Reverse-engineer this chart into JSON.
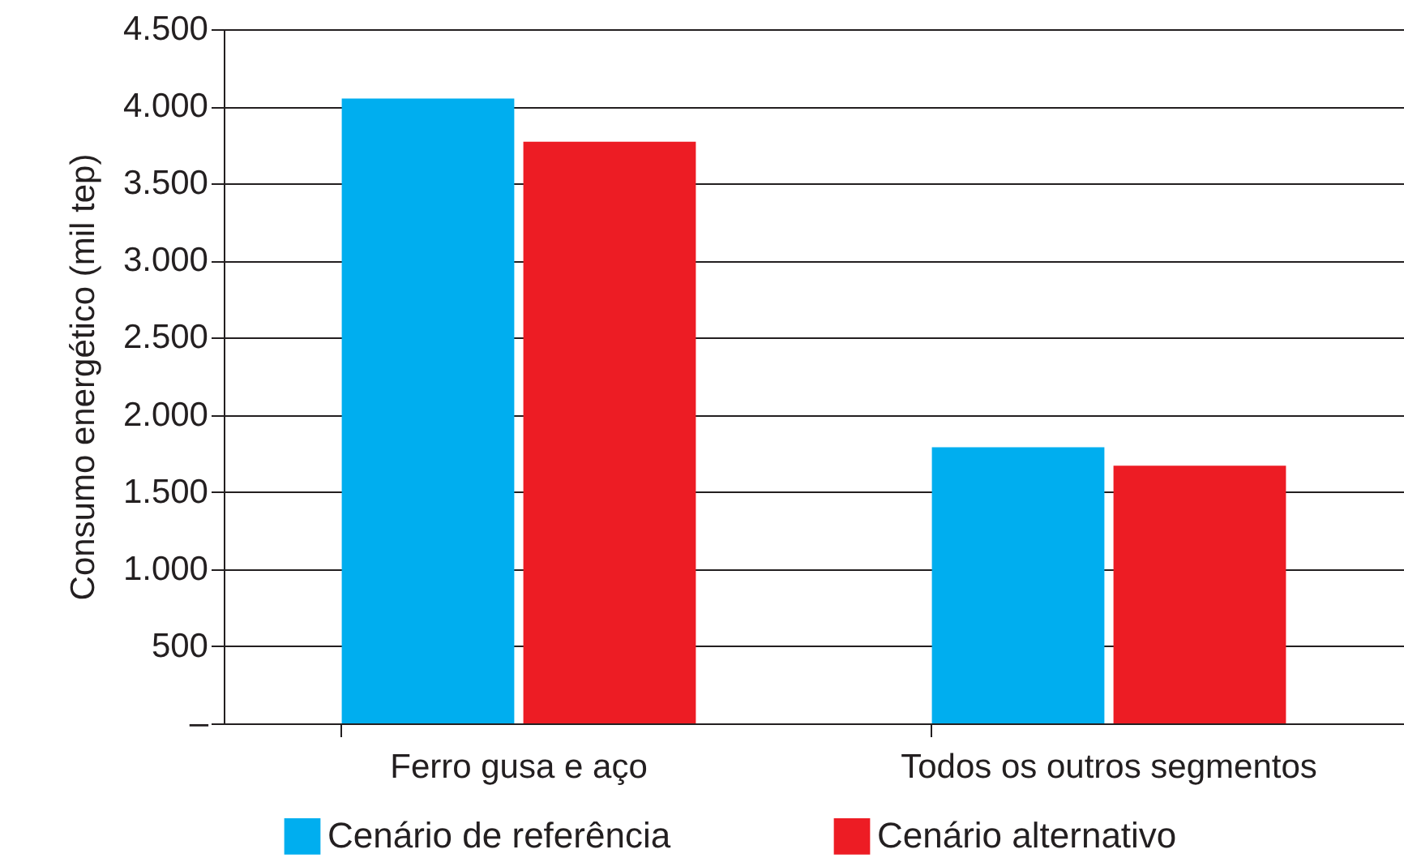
{
  "chart_data": {
    "type": "bar",
    "ylabel": "Consumo energético (mil tep)",
    "categories": [
      "Ferro gusa e aço",
      "Todos os outros segmentos"
    ],
    "series": [
      {
        "name": "Cenário de referência",
        "color": "#00aeef",
        "values": [
          4050,
          1790
        ]
      },
      {
        "name": "Cenário alternativo",
        "color": "#ed1c24",
        "values": [
          3770,
          1670
        ]
      }
    ],
    "ylim": [
      0,
      4500
    ],
    "yticks": [
      {
        "value": 0,
        "label": "–"
      },
      {
        "value": 500,
        "label": "500"
      },
      {
        "value": 1000,
        "label": "1.000"
      },
      {
        "value": 1500,
        "label": "1.500"
      },
      {
        "value": 2000,
        "label": "2.000"
      },
      {
        "value": 2500,
        "label": "2.500"
      },
      {
        "value": 3000,
        "label": "3.000"
      },
      {
        "value": 3500,
        "label": "3.500"
      },
      {
        "value": 4000,
        "label": "4.000"
      },
      {
        "value": 4500,
        "label": "4.500"
      }
    ],
    "grid": "y",
    "legend": "bottom"
  }
}
